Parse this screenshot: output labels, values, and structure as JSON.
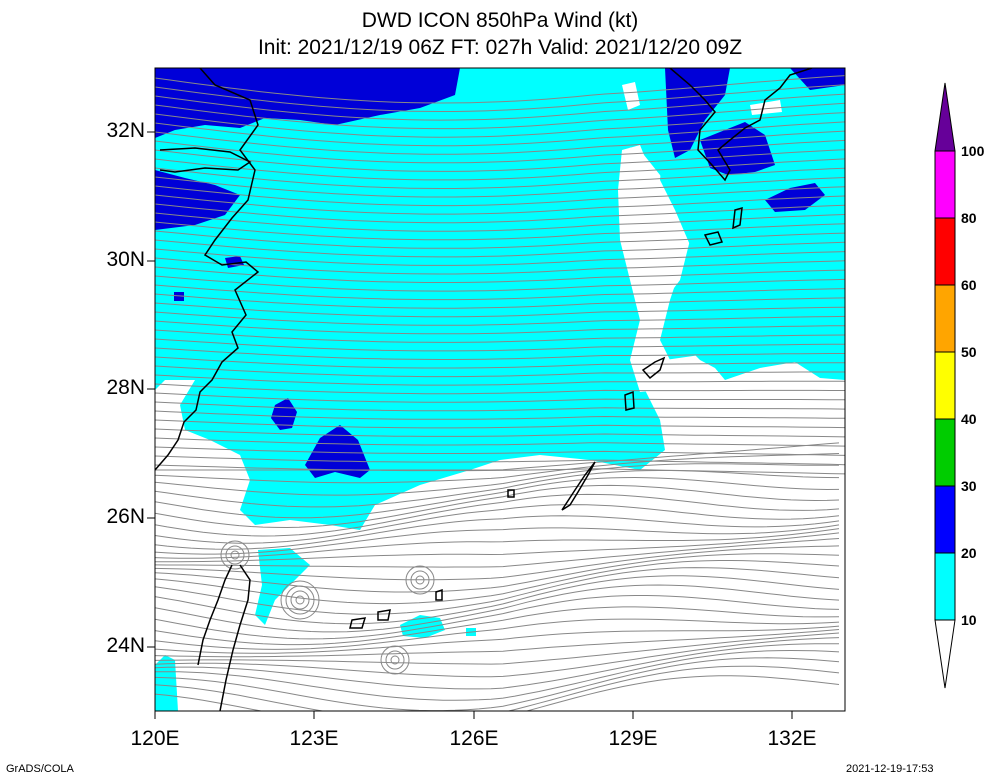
{
  "title": {
    "line1": "DWD ICON 850hPa Wind (kt)",
    "line2": "Init: 2021/12/19 06Z  FT: 027h  Valid: 2021/12/20 09Z"
  },
  "axes": {
    "lat_labels": [
      "32N",
      "30N",
      "28N",
      "26N",
      "24N"
    ],
    "lon_labels": [
      "120E",
      "123E",
      "126E",
      "129E",
      "132E"
    ]
  },
  "colorbar": {
    "levels": [
      "10",
      "20",
      "30",
      "40",
      "50",
      "60",
      "80",
      "100"
    ],
    "colors": [
      "#00ffff",
      "#0000ff",
      "#00cc00",
      "#ffff00",
      "#ffa500",
      "#ff0000",
      "#ff00ff",
      "#660099"
    ]
  },
  "map_colors": {
    "weak": "#ffffff",
    "cyan_10_20": "#00ffff",
    "blue_20_30": "#0000d8",
    "streamline": "#888888",
    "coast": "#000000"
  },
  "footer": {
    "left": "GrADS/COLA",
    "right": "2021-12-19-17:53"
  }
}
